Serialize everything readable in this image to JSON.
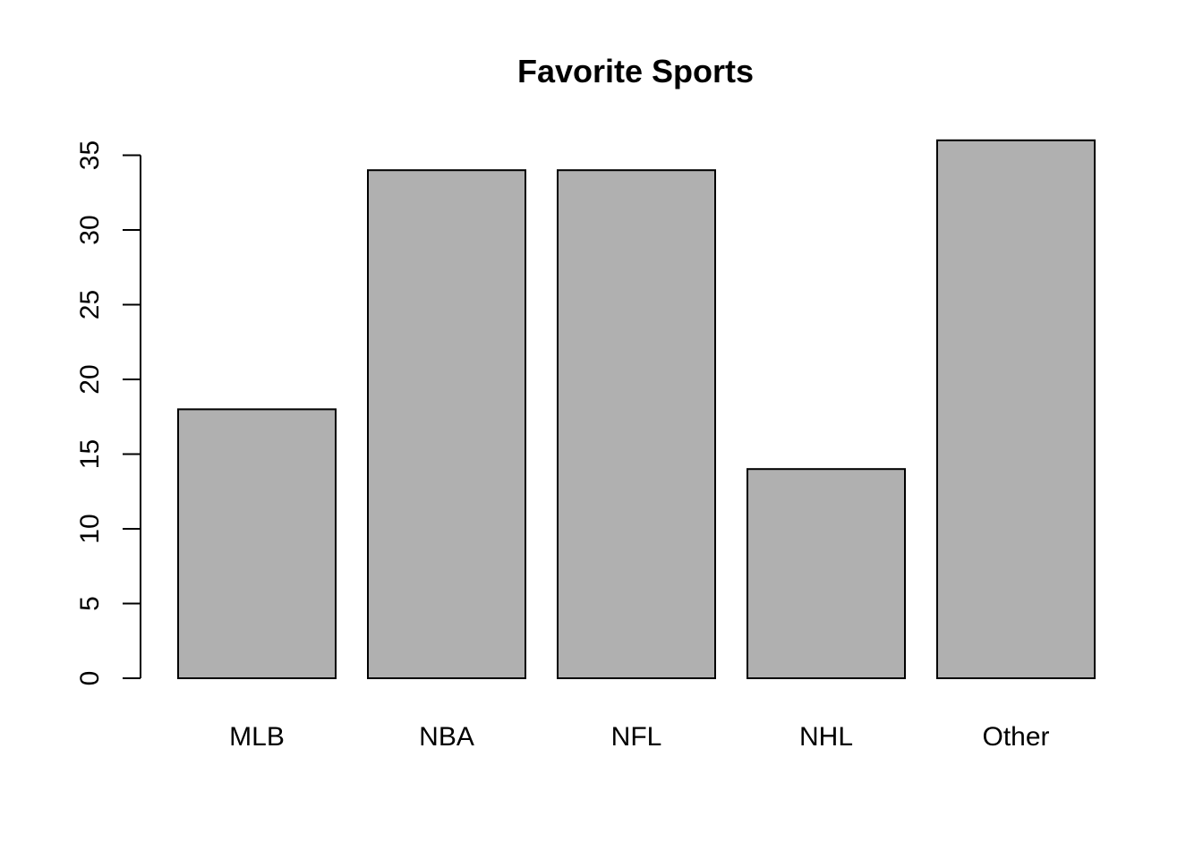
{
  "chart_data": {
    "type": "bar",
    "title": "Favorite Sports",
    "xlabel": "",
    "ylabel": "",
    "categories": [
      "MLB",
      "NBA",
      "NFL",
      "NHL",
      "Other"
    ],
    "values": [
      18,
      34,
      34,
      14,
      36
    ],
    "ylim": [
      0,
      36
    ],
    "yticks": [
      0,
      5,
      10,
      15,
      20,
      25,
      30,
      35
    ],
    "grid": false,
    "bar_color": "#b0b0b0",
    "axis_color": "#000000"
  }
}
